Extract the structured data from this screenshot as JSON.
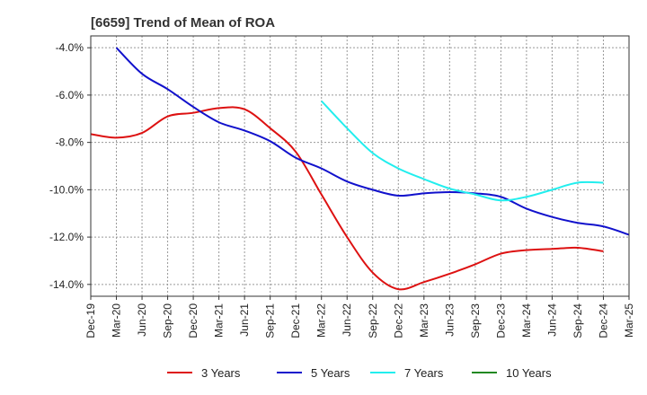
{
  "chart_data": {
    "type": "line",
    "title": "[6659]  Trend of Mean of ROA",
    "xlabel": "",
    "ylabel": "",
    "ylim": [
      -14.5,
      -3.5
    ],
    "y_ticks": [
      -4.0,
      -6.0,
      -8.0,
      -10.0,
      -12.0,
      -14.0
    ],
    "y_tick_labels": [
      "-4.0%",
      "-6.0%",
      "-8.0%",
      "-10.0%",
      "-12.0%",
      "-14.0%"
    ],
    "x_tick_labels": [
      "Dec-19",
      "Mar-20",
      "Jun-20",
      "Sep-20",
      "Dec-20",
      "Mar-21",
      "Jun-21",
      "Sep-21",
      "Dec-21",
      "Mar-22",
      "Jun-22",
      "Sep-22",
      "Dec-22",
      "Mar-23",
      "Jun-23",
      "Sep-23",
      "Dec-23",
      "Mar-24",
      "Jun-24",
      "Sep-24",
      "Dec-24",
      "Mar-25"
    ],
    "grid": true,
    "legend_position": "bottom",
    "series": [
      {
        "name": "3 Years",
        "color": "#dd1111",
        "start_index": 0,
        "values": [
          -7.65,
          -7.8,
          -7.6,
          -6.9,
          -6.75,
          -6.55,
          -6.6,
          -7.4,
          -8.4,
          -10.2,
          -12.0,
          -13.5,
          -14.2,
          -13.9,
          -13.55,
          -13.15,
          -12.7,
          -12.55,
          -12.5,
          -12.45,
          -12.6
        ]
      },
      {
        "name": "5 Years",
        "color": "#1111cc",
        "start_index": 1,
        "values": [
          -4.0,
          -5.1,
          -5.75,
          -6.5,
          -7.15,
          -7.5,
          -7.95,
          -8.65,
          -9.1,
          -9.65,
          -10.0,
          -10.25,
          -10.15,
          -10.1,
          -10.15,
          -10.3,
          -10.8,
          -11.15,
          -11.4,
          -11.55,
          -11.9
        ]
      },
      {
        "name": "7 Years",
        "color": "#22eeee",
        "start_index": 9,
        "values": [
          -6.25,
          -7.4,
          -8.45,
          -9.1,
          -9.55,
          -9.95,
          -10.2,
          -10.45,
          -10.3,
          -10.0,
          -9.7,
          -9.7
        ]
      },
      {
        "name": "10 Years",
        "color": "#228822",
        "start_index": 0,
        "values": []
      }
    ]
  }
}
